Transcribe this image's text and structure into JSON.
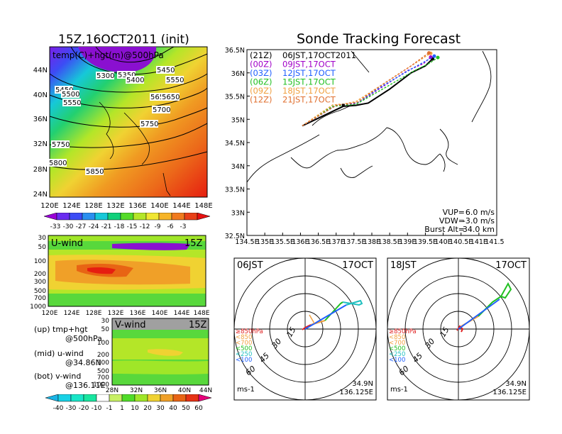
{
  "header": {
    "left_title": "15Z,16OCT2011 (init)",
    "right_title": "Sonde Tracking Forecast"
  },
  "temp_map": {
    "label": "temp(C)+hgt(m)@500hPa",
    "lon_ticks": [
      "120E",
      "124E",
      "128E",
      "132E",
      "136E",
      "140E",
      "144E",
      "148E"
    ],
    "lat_ticks": [
      "44N",
      "40N",
      "36N",
      "32N",
      "28N",
      "24N"
    ],
    "contour_labels": [
      "5300",
      "5350",
      "5400",
      "5450",
      "5550",
      "5450",
      "5500",
      "5550",
      "5650",
      "5650",
      "5700",
      "5750",
      "5750",
      "5800",
      "5850"
    ],
    "colorbar_labels": [
      "-33",
      "-30",
      "-27",
      "-24",
      "-21",
      "-18",
      "-15",
      "-12",
      "-9",
      "-6",
      "-3"
    ],
    "colorbar_colors": [
      "#9a00d8",
      "#6a2cf0",
      "#3c4cf5",
      "#2a8ff0",
      "#16c8d8",
      "#10d07a",
      "#55dc2a",
      "#b4e628",
      "#f0e632",
      "#f6b428",
      "#f07a1e",
      "#e84018",
      "#e61010"
    ]
  },
  "u_wind": {
    "label": "U-wind",
    "time": "15Z",
    "p_ticks": [
      "30",
      "50",
      "100",
      "200",
      "300",
      "500",
      "700",
      "1000"
    ],
    "lon_ticks": [
      "120E",
      "124E",
      "128E",
      "132E",
      "136E",
      "140E",
      "144E",
      "148E"
    ]
  },
  "v_wind": {
    "label": "V-wind",
    "time": "15Z",
    "p_ticks": [
      "30",
      "50",
      "100",
      "200",
      "300",
      "500",
      "700",
      "1000"
    ],
    "lat_ticks": [
      "28N",
      "32N",
      "36N",
      "40N",
      "44N"
    ],
    "colorbar_labels": [
      "-40",
      "-30",
      "-20",
      "-10",
      "-1",
      "1",
      "10",
      "20",
      "30",
      "40",
      "50",
      "60"
    ],
    "colorbar_colors": [
      "#1ab4e6",
      "#19d2e6",
      "#19e6c8",
      "#19e6a0",
      "#ffffff",
      "#c8f064",
      "#50dc28",
      "#a0e628",
      "#f0d232",
      "#f0a028",
      "#e86414",
      "#e63214",
      "#e6007a"
    ]
  },
  "legend_notes": [
    {
      "line1": "(up) tmp+hgt",
      "line2": "@500hPa"
    },
    {
      "line1": "(mid) u-wind",
      "line2": "@34.86N"
    },
    {
      "line1": "(bot) v-wind",
      "line2": "@136.11E"
    }
  ],
  "track_map": {
    "runs": [
      {
        "code": "(21Z)",
        "valid": "06JST,17OCT2011",
        "color": "#000000"
      },
      {
        "code": "(00Z)",
        "valid": "09JST,17OCT",
        "color": "#a000c8"
      },
      {
        "code": "(03Z)",
        "valid": "12JST,17OCT",
        "color": "#2060ff"
      },
      {
        "code": "(06Z)",
        "valid": "15JST,17OCT",
        "color": "#20c020"
      },
      {
        "code": "(09Z)",
        "valid": "18JST,17OCT",
        "color": "#f0a040"
      },
      {
        "code": "(12Z)",
        "valid": "21JST,17OCT",
        "color": "#e07030"
      }
    ],
    "lon_ticks": [
      "134.5E",
      "135E",
      "135.5E",
      "136E",
      "136.5E",
      "137E",
      "137.5E",
      "138E",
      "138.5E",
      "139E",
      "139.5E",
      "140E",
      "140.5E",
      "141E",
      "141.5E"
    ],
    "lat_ticks": [
      "36.5N",
      "36N",
      "35.5N",
      "35N",
      "34.5N",
      "34N",
      "33.5N",
      "33N",
      "32.5N"
    ],
    "params": [
      {
        "key": "VUP=",
        "val": "6.0 m/s"
      },
      {
        "key": "VDW=",
        "val": "-3.0 m/s"
      },
      {
        "key": "Burst Alt=",
        "val": "34.0 km"
      }
    ]
  },
  "hodo_left": {
    "time": "06JST",
    "date": "17OCT",
    "unit": "ms-1",
    "loc1": "34.9N",
    "loc2": "136.125E"
  },
  "hodo_right": {
    "time": "18JST",
    "date": "17OCT",
    "unit": "ms-1",
    "loc1": "34.9N",
    "loc2": "136.125E"
  },
  "hodo_rings": [
    "15",
    "30",
    "45",
    "60"
  ],
  "hodo_legend": [
    {
      "text": "≥850hPa",
      "color": "#e02020"
    },
    {
      "text": "<850",
      "color": "#f0a040"
    },
    {
      "text": "<700",
      "color": "#f0a040"
    },
    {
      "text": "<500",
      "color": "#20c020"
    },
    {
      "text": "<250",
      "color": "#20c0c0"
    },
    {
      "text": "<100",
      "color": "#2060ff"
    }
  ],
  "chart_data": {
    "type": "line",
    "title": "Sonde Tracking Forecast",
    "xlabel": "",
    "ylabel": "",
    "xlim": [
      134.5,
      141.5
    ],
    "ylim": [
      32.5,
      36.5
    ],
    "series": [
      {
        "name": "06JST,17OCT2011",
        "color": "#000000",
        "x": [
          136.05,
          137.2,
          137.55,
          137.9,
          138.5,
          139.1,
          139.5,
          139.7
        ],
        "y": [
          34.86,
          35.28,
          35.3,
          35.35,
          35.65,
          36.0,
          36.15,
          36.3
        ]
      },
      {
        "name": "09JST,17OCT",
        "color": "#a000c8",
        "x": [
          136.05,
          137.0,
          137.3,
          137.6,
          138.3,
          139.0,
          139.45,
          139.65
        ],
        "y": [
          34.86,
          35.3,
          35.32,
          35.35,
          35.7,
          36.05,
          36.2,
          36.34
        ]
      },
      {
        "name": "12JST,17OCT",
        "color": "#2060ff",
        "x": [
          136.05,
          137.0,
          137.3,
          137.6,
          138.3,
          139.1,
          139.5,
          139.75
        ],
        "y": [
          34.86,
          35.3,
          35.33,
          35.36,
          35.72,
          36.08,
          36.25,
          36.36
        ]
      },
      {
        "name": "15JST,17OCT",
        "color": "#20c020",
        "x": [
          136.05,
          136.9,
          137.2,
          137.55,
          138.3,
          139.2,
          139.6,
          139.85
        ],
        "y": [
          34.86,
          35.28,
          35.3,
          35.32,
          35.65,
          36.05,
          36.2,
          36.33
        ]
      },
      {
        "name": "18JST,17OCT",
        "color": "#f0a040",
        "x": [
          136.05,
          136.9,
          137.2,
          137.55,
          138.3,
          139.1,
          139.5,
          139.65
        ],
        "y": [
          34.86,
          35.31,
          35.33,
          35.38,
          35.75,
          36.15,
          36.35,
          36.42
        ]
      },
      {
        "name": "21JST,17OCT",
        "color": "#e07030",
        "x": [
          136.05,
          137.0,
          137.3,
          137.6,
          138.3,
          139.1,
          139.45,
          139.6
        ],
        "y": [
          34.86,
          35.3,
          35.33,
          35.37,
          35.75,
          36.15,
          36.35,
          36.43
        ]
      }
    ]
  }
}
